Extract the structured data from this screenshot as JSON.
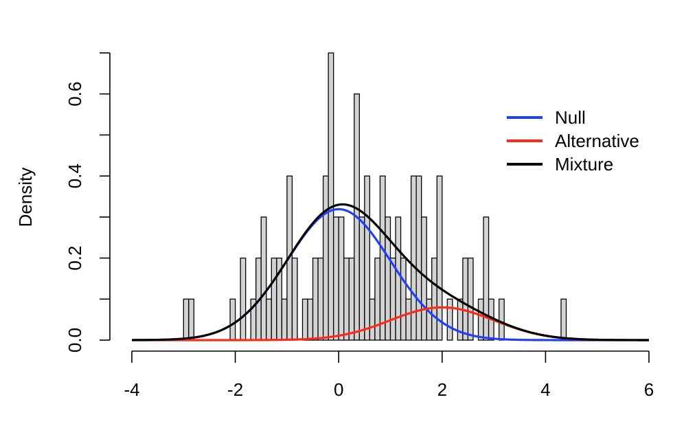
{
  "chart_data": {
    "type": "bar",
    "ylabel": "Density",
    "xlim": [
      -4,
      6
    ],
    "ylim": [
      0,
      0.7
    ],
    "x_ticks": [
      "-4",
      "-2",
      "0",
      "2",
      "4",
      "6"
    ],
    "y_ticks": [
      "0.0",
      "0.2",
      "0.4",
      "0.6"
    ],
    "histogram": {
      "bin_width": 0.1,
      "fill": "#d3d3d3",
      "bins": [
        {
          "x0": -3.0,
          "value": 0.1
        },
        {
          "x0": -2.9,
          "value": 0.1
        },
        {
          "x0": -2.1,
          "value": 0.1
        },
        {
          "x0": -1.9,
          "value": 0.2
        },
        {
          "x0": -1.7,
          "value": 0.1
        },
        {
          "x0": -1.6,
          "value": 0.2
        },
        {
          "x0": -1.5,
          "value": 0.3
        },
        {
          "x0": -1.4,
          "value": 0.1
        },
        {
          "x0": -1.3,
          "value": 0.2
        },
        {
          "x0": -1.2,
          "value": 0.2
        },
        {
          "x0": -1.1,
          "value": 0.1
        },
        {
          "x0": -1.0,
          "value": 0.4
        },
        {
          "x0": -0.9,
          "value": 0.2
        },
        {
          "x0": -0.7,
          "value": 0.1
        },
        {
          "x0": -0.6,
          "value": 0.1
        },
        {
          "x0": -0.5,
          "value": 0.2
        },
        {
          "x0": -0.4,
          "value": 0.2
        },
        {
          "x0": -0.3,
          "value": 0.4
        },
        {
          "x0": -0.2,
          "value": 0.7
        },
        {
          "x0": -0.1,
          "value": 0.3
        },
        {
          "x0": 0.0,
          "value": 0.3
        },
        {
          "x0": 0.1,
          "value": 0.2
        },
        {
          "x0": 0.2,
          "value": 0.2
        },
        {
          "x0": 0.3,
          "value": 0.6
        },
        {
          "x0": 0.4,
          "value": 0.3
        },
        {
          "x0": 0.5,
          "value": 0.4
        },
        {
          "x0": 0.6,
          "value": 0.1
        },
        {
          "x0": 0.7,
          "value": 0.2
        },
        {
          "x0": 0.8,
          "value": 0.4
        },
        {
          "x0": 0.9,
          "value": 0.3
        },
        {
          "x0": 1.0,
          "value": 0.2
        },
        {
          "x0": 1.1,
          "value": 0.3
        },
        {
          "x0": 1.2,
          "value": 0.2
        },
        {
          "x0": 1.3,
          "value": 0.1
        },
        {
          "x0": 1.4,
          "value": 0.4
        },
        {
          "x0": 1.5,
          "value": 0.4
        },
        {
          "x0": 1.6,
          "value": 0.3
        },
        {
          "x0": 1.7,
          "value": 0.1
        },
        {
          "x0": 1.8,
          "value": 0.2
        },
        {
          "x0": 1.9,
          "value": 0.4
        },
        {
          "x0": 2.1,
          "value": 0.1
        },
        {
          "x0": 2.3,
          "value": 0.1
        },
        {
          "x0": 2.4,
          "value": 0.2
        },
        {
          "x0": 2.5,
          "value": 0.2
        },
        {
          "x0": 2.7,
          "value": 0.1
        },
        {
          "x0": 2.8,
          "value": 0.3
        },
        {
          "x0": 2.9,
          "value": 0.1
        },
        {
          "x0": 3.1,
          "value": 0.1
        },
        {
          "x0": 4.3,
          "value": 0.1
        }
      ]
    },
    "series": [
      {
        "name": "Null",
        "type": "line",
        "color": "#1f3fff",
        "distribution": {
          "kind": "normal-density",
          "mean": 0,
          "sd": 1,
          "weight": 0.8
        }
      },
      {
        "name": "Alternative",
        "type": "line",
        "color": "#ff2a1a",
        "distribution": {
          "kind": "normal-density",
          "mean": 2,
          "sd": 1,
          "weight": 0.2
        }
      },
      {
        "name": "Mixture",
        "type": "line",
        "color": "#000000",
        "distribution": {
          "kind": "sum",
          "of": [
            "Null",
            "Alternative"
          ]
        }
      }
    ],
    "curve_range": [
      -4,
      6
    ],
    "grid": false,
    "legend": {
      "placement": "top-right",
      "entries": [
        {
          "label": "Null",
          "color": "#1f3fff"
        },
        {
          "label": "Alternative",
          "color": "#ff2a1a"
        },
        {
          "label": "Mixture",
          "color": "#000000"
        }
      ]
    }
  }
}
